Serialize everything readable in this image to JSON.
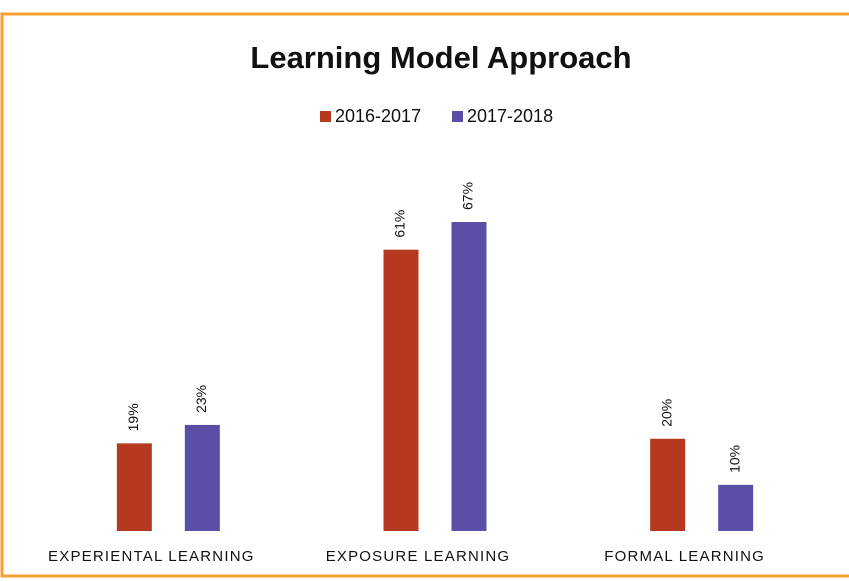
{
  "chart_data": {
    "type": "bar",
    "title": "Learning Model Approach",
    "categories": [
      "EXPERIENTAL LEARNING",
      "EXPOSURE LEARNING",
      "FORMAL LEARNING"
    ],
    "series": [
      {
        "name": "2016-2017",
        "color": "#b5391f",
        "values": [
          19,
          61,
          20
        ],
        "value_labels": [
          "19%",
          "61%",
          "20%"
        ]
      },
      {
        "name": "2017-2018",
        "color": "#5a4fa6",
        "values": [
          23,
          67,
          10
        ],
        "value_labels": [
          "23%",
          "67%",
          "10%"
        ]
      }
    ]
  }
}
